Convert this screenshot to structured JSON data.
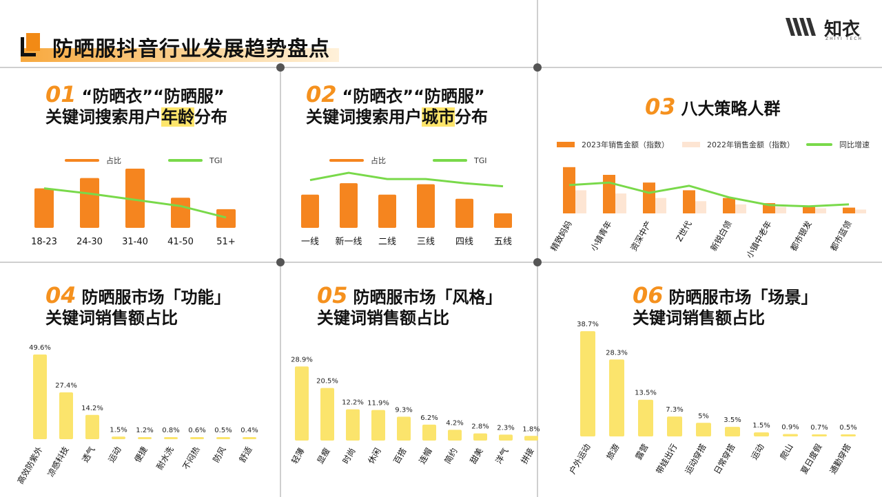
{
  "header": {
    "title": "防晒服抖音行业发展趋势盘点",
    "logo_text": "知衣",
    "logo_sub": "ZHIYI TECH"
  },
  "sections": {
    "s1": {
      "num": "01",
      "line1": "“防晒衣”“防晒服”",
      "line2_pre": "关键词搜索用户",
      "line2_hl": "年龄",
      "line2_post": "分布"
    },
    "s2": {
      "num": "02",
      "line1": "“防晒衣”“防晒服”",
      "line2_pre": "关键词搜索用户",
      "line2_hl": "城市",
      "line2_post": "分布"
    },
    "s3": {
      "num": "03",
      "line1": "八大策略人群"
    },
    "s4": {
      "num": "04",
      "line1": "防晒服市场「功能」",
      "line2": "关键词销售额占比"
    },
    "s5": {
      "num": "05",
      "line1": "防晒服市场「风格」",
      "line2": "关键词销售额占比"
    },
    "s6": {
      "num": "06",
      "line1": "防晒服市场「场景」",
      "line2": "关键词销售额占比"
    }
  },
  "colors": {
    "orange": "#f5851f",
    "green": "#79d94a",
    "yellow": "#fbe46c",
    "peach": "#fde5d3"
  },
  "chart_data": [
    {
      "id": "c1",
      "type": "bar",
      "categories": [
        "18-23",
        "24-30",
        "31-40",
        "41-50",
        "51+"
      ],
      "series": [
        {
          "name": "占比",
          "values": [
            38,
            48,
            57,
            29,
            18
          ]
        },
        {
          "name": "TGI",
          "values": [
            38,
            33,
            27,
            21,
            10
          ]
        }
      ],
      "ylim": [
        0,
        64
      ]
    },
    {
      "id": "c2",
      "type": "bar",
      "categories": [
        "一线",
        "新一线",
        "二线",
        "三线",
        "四线",
        "五线"
      ],
      "series": [
        {
          "name": "占比",
          "values": [
            32,
            43,
            32,
            42,
            28,
            14
          ]
        },
        {
          "name": "TGI",
          "values": [
            46,
            53,
            47,
            47,
            43,
            40
          ]
        }
      ],
      "ylim": [
        0,
        64
      ]
    },
    {
      "id": "c3",
      "type": "bar",
      "categories": [
        "精致妈妈",
        "小镇青年",
        "资深中产",
        "Z世代",
        "新锐白领",
        "小镇中老年",
        "都市银发",
        "都市蓝领"
      ],
      "series": [
        {
          "name": "2023年销售金额（指数）",
          "values": [
            72,
            60,
            48,
            36,
            24,
            16,
            10,
            9
          ]
        },
        {
          "name": "2022年销售金额（指数）",
          "values": [
            36,
            31,
            24,
            19,
            14,
            10,
            8,
            6
          ]
        },
        {
          "name": "同比增速",
          "values": [
            44,
            48,
            32,
            43,
            25,
            13,
            11,
            14
          ]
        }
      ],
      "ylim": [
        0,
        75
      ]
    },
    {
      "id": "c4",
      "type": "bar",
      "categories": [
        "高效防紫外",
        "凉感科技",
        "透气",
        "运动",
        "便捷",
        "耐水洗",
        "不闷热",
        "防风",
        "舒适"
      ],
      "values": [
        49.6,
        27.4,
        14.2,
        1.5,
        1.2,
        0.8,
        0.6,
        0.5,
        0.4
      ],
      "value_labels": [
        "49.6%",
        "27.4%",
        "14.2%",
        "1.5%",
        "1.2%",
        "0.8%",
        "0.6%",
        "0.5%",
        "0.4%"
      ],
      "ylim": [
        0,
        50
      ]
    },
    {
      "id": "c5",
      "type": "bar",
      "categories": [
        "轻薄",
        "显瘦",
        "时尚",
        "休闲",
        "百搭",
        "连帽",
        "简约",
        "甜美",
        "洋气",
        "拼接"
      ],
      "values": [
        28.9,
        20.5,
        12.2,
        11.9,
        9.3,
        6.2,
        4.2,
        2.8,
        2.3,
        1.8
      ],
      "value_labels": [
        "28.9%",
        "20.5%",
        "12.2%",
        "11.9%",
        "9.3%",
        "6.2%",
        "4.2%",
        "2.8%",
        "2.3%",
        "1.8%"
      ],
      "ylim": [
        0,
        29
      ]
    },
    {
      "id": "c6",
      "type": "bar",
      "categories": [
        "户外运动",
        "旅游",
        "露营",
        "带娃出行",
        "运动穿搭",
        "日常穿搭",
        "运动",
        "爬山",
        "夏日度假",
        "通勤穿搭"
      ],
      "values": [
        38.7,
        28.3,
        13.5,
        7.3,
        5,
        3.5,
        1.5,
        0.9,
        0.7,
        0.5
      ],
      "value_labels": [
        "38.7%",
        "28.3%",
        "13.5%",
        "7.3%",
        "5%",
        "3.5%",
        "1.5%",
        "0.9%",
        "0.7%",
        "0.5%"
      ],
      "ylim": [
        0,
        39
      ]
    }
  ]
}
